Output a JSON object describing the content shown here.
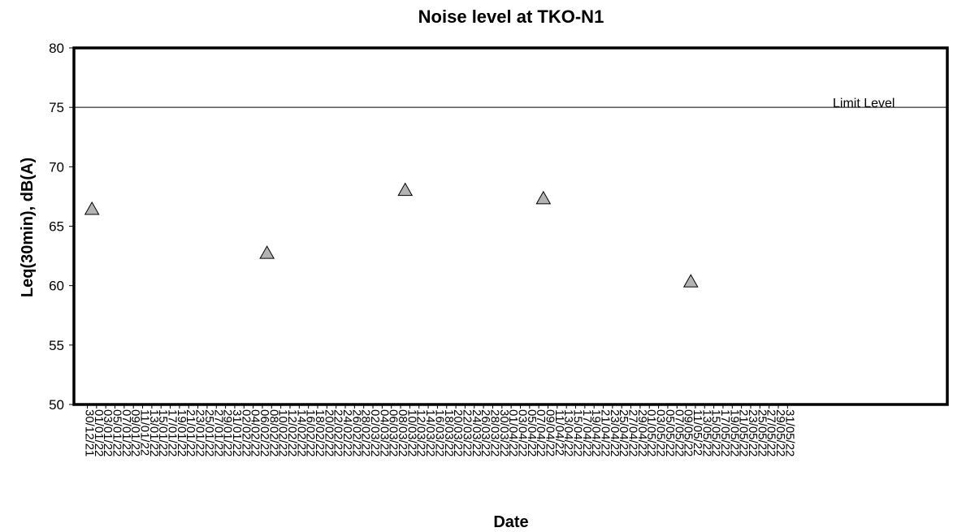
{
  "chart_data": {
    "type": "scatter",
    "title": "Noise level at TKO-N1",
    "xlabel": "Date",
    "ylabel": "Leq(30min), dB(A)",
    "ylim": [
      50,
      80
    ],
    "yticks": [
      50,
      55,
      60,
      65,
      70,
      75,
      80
    ],
    "x_start": "30/12/21",
    "x_step_days": 2,
    "categories": [
      "30/12/21",
      "01/01/22",
      "03/01/22",
      "05/01/22",
      "07/01/22",
      "09/01/22",
      "11/01/22",
      "13/01/22",
      "15/01/22",
      "17/01/22",
      "19/01/22",
      "21/01/22",
      "23/01/22",
      "25/01/22",
      "27/01/22",
      "29/01/22",
      "31/01/22",
      "02/02/22",
      "04/02/22",
      "06/02/22",
      "08/02/22",
      "10/02/22",
      "12/02/22",
      "14/02/22",
      "16/02/22",
      "18/02/22",
      "20/02/22",
      "22/02/22",
      "24/02/22",
      "26/02/22",
      "28/02/22",
      "02/03/22",
      "04/03/22",
      "06/03/22",
      "08/03/22",
      "10/03/22",
      "12/03/22",
      "14/03/22",
      "16/03/22",
      "18/03/22",
      "20/03/22",
      "22/03/22",
      "24/03/22",
      "26/03/22",
      "28/03/22",
      "30/03/22",
      "01/04/22",
      "03/04/22",
      "05/04/22",
      "07/04/22",
      "09/04/22",
      "11/04/22",
      "13/04/22",
      "15/04/22",
      "17/04/22",
      "19/04/22",
      "21/04/22",
      "23/04/22",
      "25/04/22",
      "27/04/22",
      "29/04/22",
      "01/05/22",
      "03/05/22",
      "05/05/22",
      "07/05/22",
      "09/05/22",
      "11/05/22",
      "13/05/22",
      "15/05/22",
      "17/05/22",
      "19/05/22",
      "21/05/22",
      "23/05/22",
      "25/05/22",
      "27/05/22",
      "29/05/22",
      "31/05/22"
    ],
    "series": [
      {
        "marker": "triangle",
        "color": "#b3b3b3",
        "points": [
          {
            "x": "31/12/21",
            "y": 66.4
          },
          {
            "x": "07/02/22",
            "y": 62.7
          },
          {
            "x": "09/03/22",
            "y": 68.0
          },
          {
            "x": "08/04/22",
            "y": 67.3
          },
          {
            "x": "10/05/22",
            "y": 60.3
          }
        ]
      }
    ],
    "limit_line": {
      "label": "Limit Level",
      "y": 75
    },
    "grid": false
  }
}
